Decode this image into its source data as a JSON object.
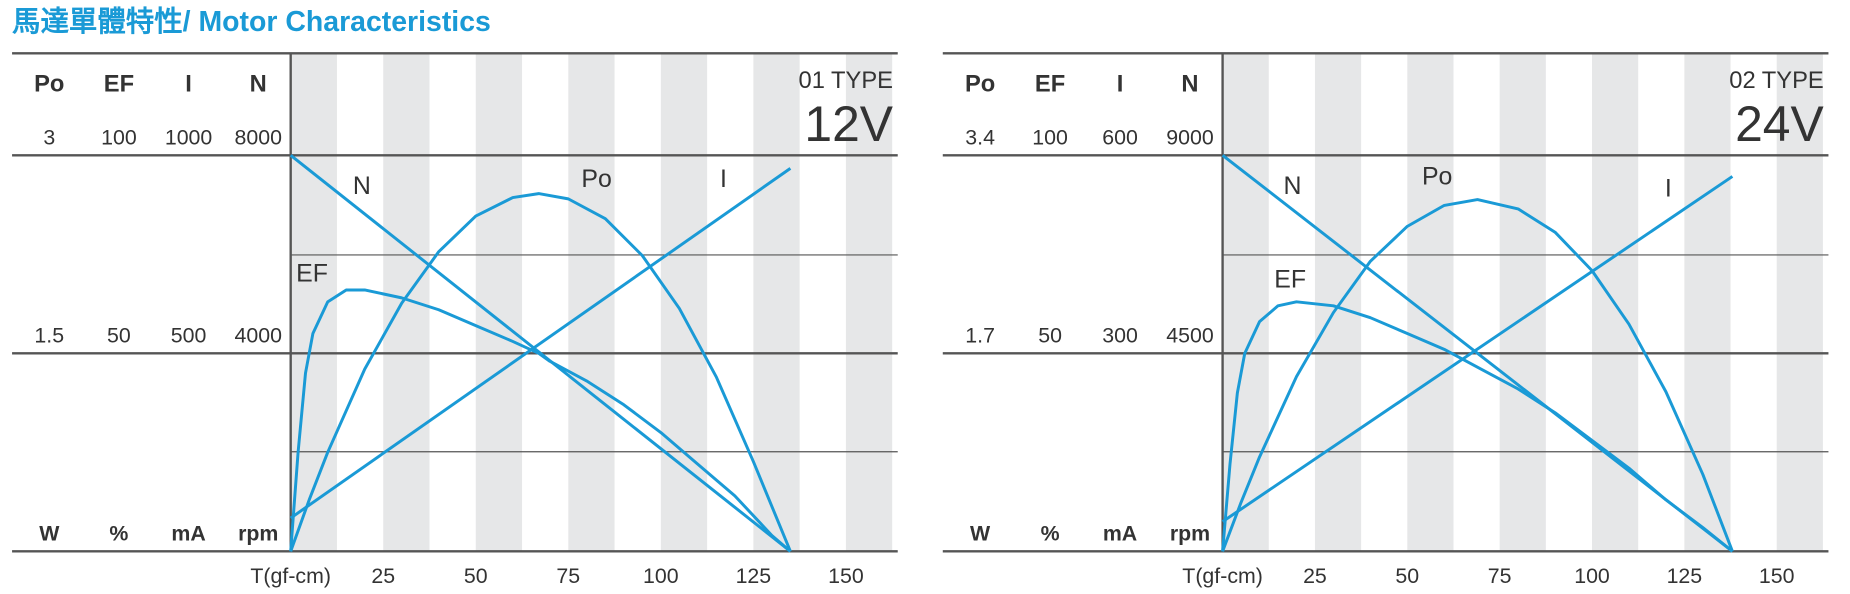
{
  "title": "馬達單體特性/ Motor Characteristics",
  "chart_data": [
    {
      "type": "line",
      "type_label": "01 TYPE",
      "voltage": "12V",
      "color": "#1a9ad6",
      "x_label": "T(gf-cm)",
      "xlim": [
        0,
        164
      ],
      "xticks": [
        25,
        50,
        75,
        100,
        125,
        150
      ],
      "axes": [
        {
          "name": "Po",
          "unit": "W",
          "ylim": [
            0,
            3
          ],
          "yticks": [
            1.5,
            3
          ]
        },
        {
          "name": "EF",
          "unit": "%",
          "ylim": [
            0,
            100
          ],
          "yticks": [
            50,
            100
          ]
        },
        {
          "name": "I",
          "unit": "mA",
          "ylim": [
            0,
            1000
          ],
          "yticks": [
            500,
            1000
          ]
        },
        {
          "name": "N",
          "unit": "rpm",
          "ylim": [
            0,
            8000
          ],
          "yticks": [
            4000,
            8000
          ]
        }
      ],
      "series": [
        {
          "name": "N",
          "axis": "N",
          "x": [
            0,
            135
          ],
          "values": [
            8000,
            0
          ]
        },
        {
          "name": "Po",
          "axis": "Po",
          "x": [
            0,
            5,
            10,
            20,
            30,
            40,
            50,
            60,
            67,
            75,
            85,
            95,
            105,
            115,
            125,
            135
          ],
          "values": [
            0,
            0.39,
            0.75,
            1.38,
            1.88,
            2.27,
            2.54,
            2.68,
            2.71,
            2.67,
            2.52,
            2.24,
            1.84,
            1.32,
            0.68,
            0
          ]
        },
        {
          "name": "I",
          "axis": "I",
          "x": [
            0,
            135
          ],
          "values": [
            84,
            967
          ]
        },
        {
          "name": "EF",
          "axis": "EF",
          "x": [
            0,
            2,
            4,
            6,
            10,
            15,
            20,
            30,
            40,
            50,
            60,
            67,
            70,
            80,
            90,
            100,
            110,
            120,
            130,
            135
          ],
          "values": [
            0,
            25,
            45,
            55,
            63,
            66,
            66,
            64,
            61,
            57,
            53,
            50,
            48,
            43,
            37,
            30,
            22,
            14,
            4,
            0
          ]
        }
      ]
    },
    {
      "type": "line",
      "type_label": "02 TYPE",
      "voltage": "24V",
      "color": "#1a9ad6",
      "x_label": "T(gf-cm)",
      "xlim": [
        0,
        164
      ],
      "xticks": [
        25,
        50,
        75,
        100,
        125,
        150
      ],
      "axes": [
        {
          "name": "Po",
          "unit": "W",
          "ylim": [
            0,
            3.4
          ],
          "yticks": [
            1.7,
            3.4
          ]
        },
        {
          "name": "EF",
          "unit": "%",
          "ylim": [
            0,
            100
          ],
          "yticks": [
            50,
            100
          ]
        },
        {
          "name": "I",
          "unit": "mA",
          "ylim": [
            0,
            600
          ],
          "yticks": [
            300,
            600
          ]
        },
        {
          "name": "N",
          "unit": "rpm",
          "ylim": [
            0,
            9000
          ],
          "yticks": [
            4500,
            9000
          ]
        }
      ],
      "series": [
        {
          "name": "N",
          "axis": "N",
          "x": [
            0,
            138
          ],
          "values": [
            9000,
            0
          ]
        },
        {
          "name": "Po",
          "axis": "Po",
          "x": [
            0,
            5,
            10,
            20,
            30,
            40,
            50,
            60,
            69,
            80,
            90,
            100,
            110,
            120,
            130,
            138
          ],
          "values": [
            0,
            0.42,
            0.81,
            1.5,
            2.05,
            2.49,
            2.79,
            2.97,
            3.02,
            2.94,
            2.74,
            2.41,
            1.95,
            1.37,
            0.66,
            0
          ]
        },
        {
          "name": "I",
          "axis": "I",
          "x": [
            0,
            138
          ],
          "values": [
            45,
            568
          ]
        },
        {
          "name": "EF",
          "axis": "EF",
          "x": [
            0,
            2,
            4,
            6,
            10,
            15,
            20,
            30,
            40,
            50,
            60,
            70,
            80,
            90,
            100,
            110,
            120,
            130,
            138
          ],
          "values": [
            0,
            22,
            40,
            50,
            58,
            62,
            63,
            62,
            59,
            55,
            51,
            46,
            41,
            35,
            28,
            21,
            13,
            6,
            0
          ]
        }
      ]
    }
  ]
}
